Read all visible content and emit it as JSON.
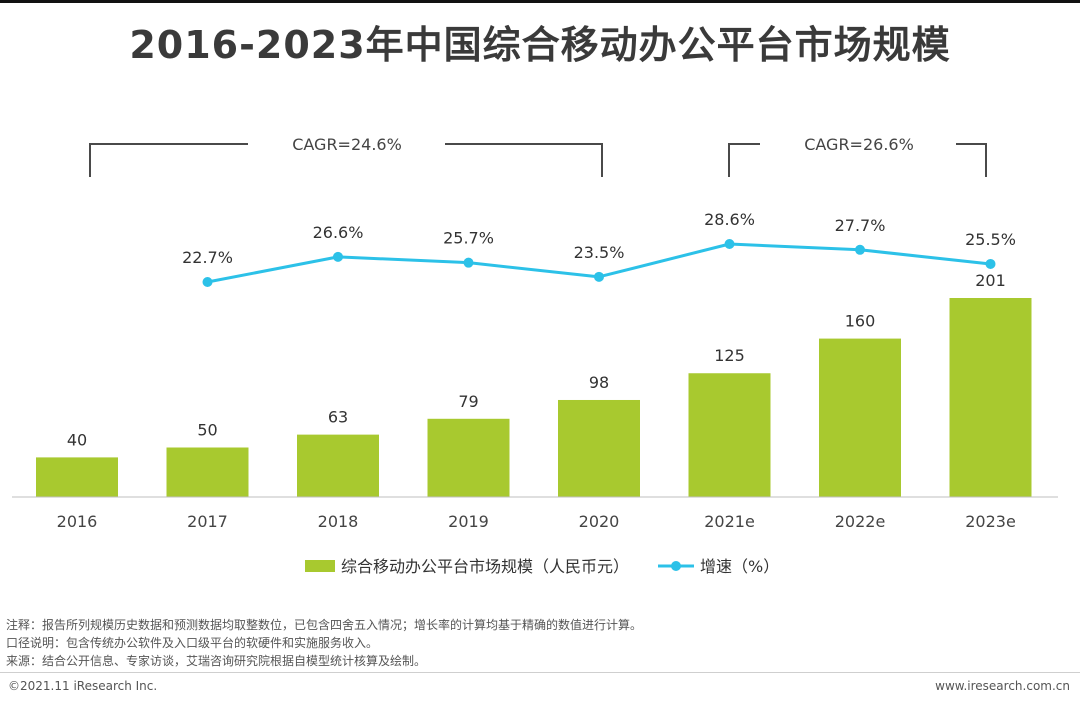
{
  "title": "2016-2023年中国综合移动办公平台市场规模",
  "chart_data": {
    "type": "bar",
    "title": "2016-2023年中国综合移动办公平台市场规模",
    "categories": [
      "2016",
      "2017",
      "2018",
      "2019",
      "2020",
      "2021e",
      "2022e",
      "2023e"
    ],
    "series": [
      {
        "name": "综合移动办公平台市场规模（人民币元）",
        "type": "bar",
        "color": "#a8c92f",
        "values": [
          40,
          50,
          63,
          79,
          98,
          125,
          160,
          201
        ],
        "labels": [
          "40",
          "50",
          "63",
          "79",
          "98",
          "125",
          "160",
          "201"
        ]
      },
      {
        "name": "增速（%）",
        "type": "line",
        "color": "#2cc1e8",
        "values": [
          null,
          22.7,
          26.6,
          25.7,
          23.5,
          28.6,
          27.7,
          25.5
        ],
        "labels": [
          "",
          "22.7%",
          "26.6%",
          "25.7%",
          "23.5%",
          "28.6%",
          "27.7%",
          "25.5%"
        ]
      }
    ],
    "ylim": [
      0,
      220
    ],
    "growth_range": [
      18,
      32
    ],
    "annotations": [
      {
        "text": "CAGR=24.6%",
        "from": "2016",
        "to": "2020"
      },
      {
        "text": "CAGR=26.6%",
        "from": "2021e",
        "to": "2023e"
      }
    ],
    "legend": "bottom"
  },
  "notes": [
    "注释：报告所列规模历史数据和预测数据均取整数位，已包含四舍五入情况；增长率的计算均基于精确的数值进行计算。",
    "口径说明：包含传统办公软件及入口级平台的软硬件和实施服务收入。",
    "来源：结合公开信息、专家访谈，艾瑞咨询研究院根据自模型统计核算及绘制。"
  ],
  "footer": {
    "copyright": "©2021.11 iResearch Inc.",
    "website": "www.iresearch.com.cn"
  }
}
